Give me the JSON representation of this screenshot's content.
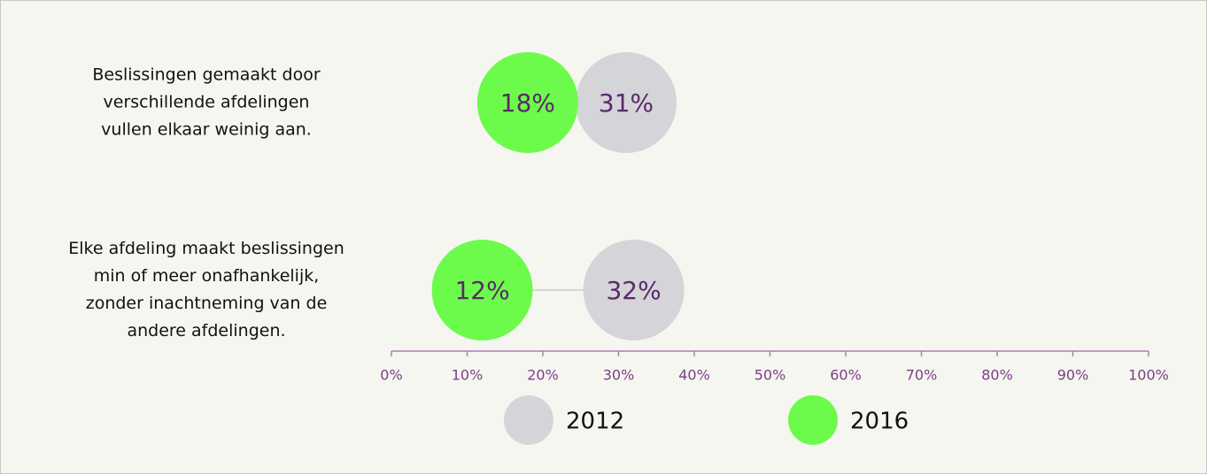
{
  "chart_data": {
    "type": "dot",
    "categories": [
      "Beslissingen  gemaakt door\nverschillende afdelingen\nvullen elkaar weinig aan.",
      "Elke afdeling maakt beslissingen\nmin of meer onafhankelijk,\nzonder inachtneming van de\nandere afdelingen."
    ],
    "series": [
      {
        "name": "2012",
        "color": "#d4d4d9",
        "values": [
          31,
          32
        ],
        "value_labels": [
          "31%",
          "32%"
        ]
      },
      {
        "name": "2016",
        "color": "#6cfb4b",
        "values": [
          18,
          12
        ],
        "value_labels": [
          "18%",
          "12%"
        ]
      }
    ],
    "xlim": [
      0,
      100
    ],
    "xticks": [
      {
        "value": 0,
        "label": "0%"
      },
      {
        "value": 10,
        "label": "10%"
      },
      {
        "value": 20,
        "label": "20%"
      },
      {
        "value": 30,
        "label": "30%"
      },
      {
        "value": 40,
        "label": "40%"
      },
      {
        "value": 50,
        "label": "50%"
      },
      {
        "value": 60,
        "label": "60%"
      },
      {
        "value": 70,
        "label": "70%"
      },
      {
        "value": 80,
        "label": "80%"
      },
      {
        "value": 90,
        "label": "90%"
      },
      {
        "value": 100,
        "label": "100%"
      }
    ]
  }
}
